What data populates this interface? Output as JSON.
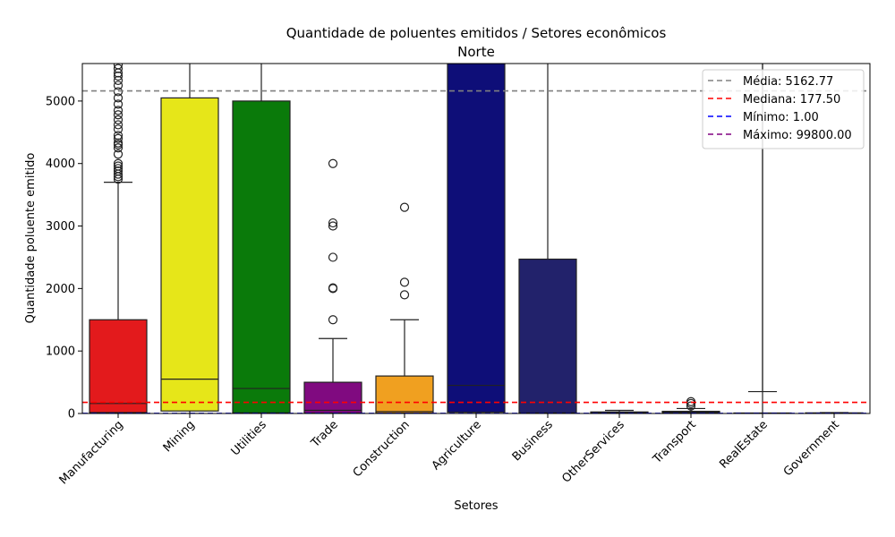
{
  "chart_data": {
    "type": "box",
    "title": "Quantidade de poluentes emitidos / Setores econômicos",
    "subtitle": "Norte",
    "xlabel": "Setores",
    "ylabel": "Quantidade poluente emitido",
    "ylim": [
      0,
      5600
    ],
    "yticks": [
      0,
      1000,
      2000,
      3000,
      4000,
      5000
    ],
    "grid": false,
    "legend_position": "top-right",
    "categories": [
      "Manufacturing",
      "Mining",
      "Utilities",
      "Trade",
      "Construction",
      "Agriculture",
      "Business",
      "OtherServices",
      "Transport",
      "RealEstate",
      "Government"
    ],
    "boxes": [
      {
        "category": "Manufacturing",
        "color": "#e31a1c",
        "q1": 15,
        "median": 160,
        "q3": 1500,
        "whisker_low": 1,
        "whisker_high": 3700,
        "outliers": [
          3750,
          3790,
          3830,
          3880,
          3920,
          3960,
          4000,
          4150,
          4250,
          4300,
          4330,
          4400,
          4450,
          4550,
          4620,
          4700,
          4780,
          4850,
          4950,
          5050,
          5150,
          5250,
          5330,
          5400,
          5450,
          5520,
          5580
        ]
      },
      {
        "category": "Mining",
        "color": "#e6e619",
        "q1": 40,
        "median": 550,
        "q3": 5050,
        "whisker_low": 1,
        "whisker_high": 5600,
        "outliers": []
      },
      {
        "category": "Utilities",
        "color": "#0a7a0a",
        "q1": 10,
        "median": 400,
        "q3": 5000,
        "whisker_low": 1,
        "whisker_high": 5600,
        "outliers": []
      },
      {
        "category": "Trade",
        "color": "#800a80",
        "q1": 5,
        "median": 50,
        "q3": 500,
        "whisker_low": 1,
        "whisker_high": 1200,
        "outliers": [
          1500,
          2000,
          2010,
          2500,
          3000,
          3050,
          4000
        ]
      },
      {
        "category": "Construction",
        "color": "#f0a020",
        "q1": 5,
        "median": 30,
        "q3": 600,
        "whisker_low": 1,
        "whisker_high": 1500,
        "outliers": [
          1900,
          2100,
          3300
        ]
      },
      {
        "category": "Agriculture",
        "color": "#0e0e78",
        "q1": 20,
        "median": 450,
        "q3": 5600,
        "whisker_low": 1,
        "whisker_high": 5600,
        "outliers": []
      },
      {
        "category": "Business",
        "color": "#22226b",
        "q1": 5,
        "median": 10,
        "q3": 2470,
        "whisker_low": 1,
        "whisker_high": 5600,
        "outliers": []
      },
      {
        "category": "OtherServices",
        "color": "#2b2b80",
        "q1": 2,
        "median": 10,
        "q3": 25,
        "whisker_low": 1,
        "whisker_high": 50,
        "outliers": []
      },
      {
        "category": "Transport",
        "color": "#1f77b4",
        "q1": 5,
        "median": 20,
        "q3": 35,
        "whisker_low": 1,
        "whisker_high": 80,
        "outliers": [
          120,
          160,
          190
        ]
      },
      {
        "category": "RealEstate",
        "color": "#6a5acd",
        "q1": 2,
        "median": 5,
        "q3": 8,
        "whisker_low": 1,
        "whisker_high": 5600,
        "whisker_low_cap": 350,
        "outliers": []
      },
      {
        "category": "Government",
        "color": "#2ca02c",
        "q1": 2,
        "median": 5,
        "q3": 10,
        "whisker_low": 1,
        "whisker_high": 15,
        "outliers": []
      }
    ],
    "reference_lines": [
      {
        "label": "Média: 5162.77",
        "value": 5162.77,
        "color": "#808080"
      },
      {
        "label": "Mediana: 177.50",
        "value": 177.5,
        "color": "#ff0000"
      },
      {
        "label": "Mínimo: 1.00",
        "value": 1.0,
        "color": "#0000ff"
      },
      {
        "label": "Máximo: 99800.00",
        "value": 99800.0,
        "color": "#800080"
      }
    ]
  }
}
